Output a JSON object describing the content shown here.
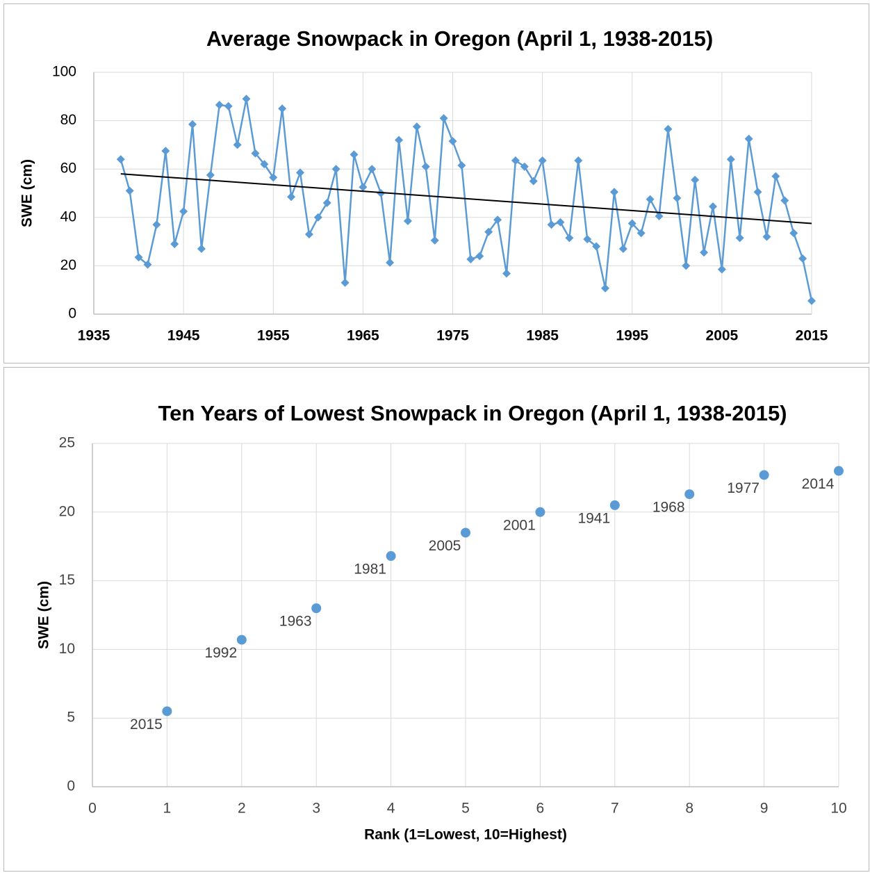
{
  "chart_data": [
    {
      "type": "line",
      "title": "Average Snowpack in Oregon (April 1, 1938-2015)",
      "ylabel": "SWE (cm)",
      "x": [
        1938,
        1939,
        1940,
        1941,
        1942,
        1943,
        1944,
        1945,
        1946,
        1947,
        1948,
        1949,
        1950,
        1951,
        1952,
        1953,
        1954,
        1955,
        1956,
        1957,
        1958,
        1959,
        1960,
        1961,
        1962,
        1963,
        1964,
        1965,
        1966,
        1967,
        1968,
        1969,
        1970,
        1971,
        1972,
        1973,
        1974,
        1975,
        1976,
        1977,
        1978,
        1979,
        1980,
        1981,
        1982,
        1983,
        1984,
        1985,
        1986,
        1987,
        1988,
        1989,
        1990,
        1991,
        1992,
        1993,
        1994,
        1995,
        1996,
        1997,
        1998,
        1999,
        2000,
        2001,
        2002,
        2003,
        2004,
        2005,
        2006,
        2007,
        2008,
        2009,
        2010,
        2011,
        2012,
        2013,
        2014,
        2015
      ],
      "series": [
        {
          "color": "#5b9bd5",
          "values": [
            64,
            51,
            23.5,
            20.5,
            37,
            67.5,
            29,
            42.5,
            78.5,
            27,
            57.5,
            86.5,
            86,
            70,
            89,
            66.5,
            62,
            56.5,
            85,
            48.5,
            58.5,
            33,
            40,
            46,
            60,
            13,
            66,
            52.5,
            60,
            50,
            21.3,
            72,
            38.5,
            77.5,
            61,
            30.5,
            81,
            71.5,
            61.5,
            22.7,
            24,
            34,
            39,
            16.8,
            63.5,
            61,
            55,
            63.5,
            37,
            38,
            31.5,
            63.5,
            31,
            28,
            10.7,
            50.5,
            27,
            37.5,
            33.5,
            47.5,
            40.5,
            76.5,
            48,
            20,
            55.5,
            25.5,
            44.5,
            18.5,
            64,
            31.5,
            72.5,
            50.5,
            32,
            57,
            47,
            33.5,
            23,
            5.5
          ]
        }
      ],
      "trendline": {
        "x": [
          1938,
          2015
        ],
        "values": [
          58,
          37.5
        ],
        "color": "#000000"
      },
      "xlim": [
        1935,
        2015
      ],
      "xticks": [
        1935,
        1945,
        1955,
        1965,
        1975,
        1985,
        1995,
        2005,
        2015
      ],
      "ylim": [
        0,
        100
      ],
      "yticks": [
        0,
        20,
        40,
        60,
        80,
        100
      ],
      "grid": true
    },
    {
      "type": "scatter",
      "title": "Ten Years of Lowest Snowpack in Oregon (April 1, 1938-2015)",
      "xlabel": "Rank (1=Lowest, 10=Highest)",
      "ylabel": "SWE (cm)",
      "color": "#5b9bd5",
      "x": [
        1,
        2,
        3,
        4,
        5,
        6,
        7,
        8,
        9,
        10
      ],
      "values": [
        5.5,
        10.7,
        13,
        16.8,
        18.5,
        20,
        20.5,
        21.3,
        22.7,
        23
      ],
      "point_labels": [
        "2015",
        "1992",
        "1963",
        "1981",
        "2005",
        "2001",
        "1941",
        "1968",
        "1977",
        "2014"
      ],
      "xlim": [
        0,
        10
      ],
      "xticks": [
        0,
        1,
        2,
        3,
        4,
        5,
        6,
        7,
        8,
        9,
        10
      ],
      "ylim": [
        0,
        25
      ],
      "yticks": [
        0,
        5,
        10,
        15,
        20,
        25
      ],
      "grid": true
    }
  ]
}
